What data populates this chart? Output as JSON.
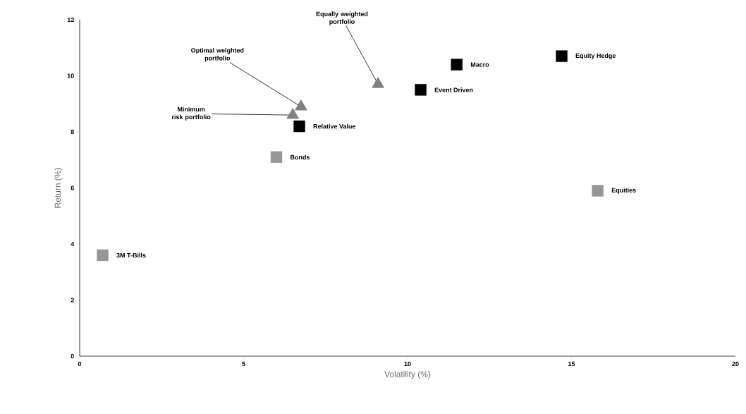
{
  "chart_data": {
    "type": "scatter",
    "xlabel": "Volatility (%)",
    "ylabel": "Return (%)",
    "series": [
      {
        "color": "#969696",
        "marker": "square",
        "x": [
          0.7,
          6.0,
          15.8
        ],
        "values": [
          3.6,
          7.1,
          5.9
        ]
      },
      {
        "color": "#000000",
        "marker": "square",
        "x": [
          6.7,
          10.4,
          11.5,
          14.7
        ],
        "values": [
          8.2,
          9.5,
          10.4,
          10.7
        ]
      },
      {
        "color": "#808080",
        "marker": "triangle",
        "x": [
          6.5,
          6.75,
          9.1
        ],
        "values": [
          8.6,
          8.9,
          9.7
        ]
      }
    ],
    "annotations": [
      {
        "text": "3M T-Bills",
        "x": 0.7,
        "y": 3.6
      },
      {
        "text": "Bonds",
        "x": 6.0,
        "y": 7.1
      },
      {
        "text": "Equities",
        "x": 15.8,
        "y": 5.9
      },
      {
        "text": "Relative Value",
        "x": 6.7,
        "y": 8.2
      },
      {
        "text": "Event Driven",
        "x": 10.4,
        "y": 9.5
      },
      {
        "text": "Macro",
        "x": 11.5,
        "y": 10.4
      },
      {
        "text": "Equity Hedge",
        "x": 14.7,
        "y": 10.7
      },
      {
        "text": "Minimum risk portfolio",
        "x": 6.5,
        "y": 8.6
      },
      {
        "text": "Optimal weighted portfolio",
        "x": 6.75,
        "y": 8.9
      },
      {
        "text": "Equally weighted portfolio",
        "x": 9.1,
        "y": 9.7
      }
    ],
    "xlim": [
      0,
      20
    ],
    "xticks": [
      0,
      5,
      10,
      15,
      20
    ],
    "ylim": [
      0,
      12
    ],
    "yticks": [
      0,
      2,
      4,
      6,
      8,
      10,
      12
    ],
    "grid": false
  }
}
